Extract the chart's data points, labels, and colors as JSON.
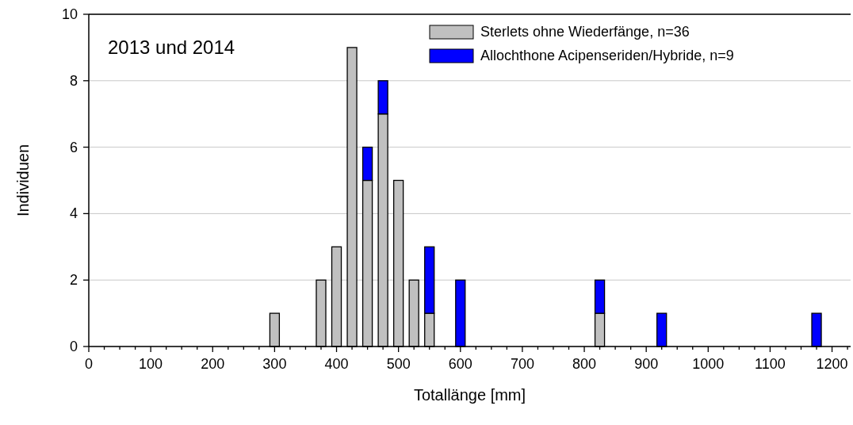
{
  "chart_data": {
    "type": "bar",
    "stacked": true,
    "xlabel": "Totallänge [mm]",
    "ylabel": "Individuen",
    "annotations": [
      "2013 und 2014"
    ],
    "x": [
      300,
      375,
      400,
      425,
      450,
      475,
      500,
      525,
      550,
      600,
      825,
      925,
      1175
    ],
    "series": [
      {
        "name": "Sterlets ohne Wiederfänge, n=36",
        "color": "#c0c0c0",
        "values": [
          1,
          2,
          3,
          9,
          5,
          7,
          5,
          2,
          1,
          0,
          1,
          0,
          0
        ]
      },
      {
        "name": "Allochthone Acipenseriden/Hybride, n=9",
        "color": "#0000ff",
        "values": [
          0,
          0,
          0,
          0,
          1,
          1,
          0,
          0,
          2,
          2,
          1,
          1,
          1
        ]
      }
    ],
    "xlim": [
      0,
      1230
    ],
    "xticks": [
      0,
      {
        "value": 25,
        "label": null
      },
      {
        "value": 50,
        "label": null
      },
      {
        "value": 75,
        "label": null
      },
      100,
      {
        "value": 125,
        "label": null
      },
      {
        "value": 150,
        "label": null
      },
      {
        "value": 175,
        "label": null
      },
      200,
      {
        "value": 225,
        "label": null
      },
      {
        "value": 250,
        "label": null
      },
      {
        "value": 275,
        "label": null
      },
      300,
      {
        "value": 325,
        "label": null
      },
      {
        "value": 350,
        "label": null
      },
      {
        "value": 375,
        "label": null
      },
      400,
      {
        "value": 425,
        "label": null
      },
      {
        "value": 450,
        "label": null
      },
      {
        "value": 475,
        "label": null
      },
      500,
      {
        "value": 525,
        "label": null
      },
      {
        "value": 550,
        "label": null
      },
      {
        "value": 575,
        "label": null
      },
      600,
      {
        "value": 625,
        "label": null
      },
      {
        "value": 650,
        "label": null
      },
      {
        "value": 675,
        "label": null
      },
      700,
      {
        "value": 725,
        "label": null
      },
      {
        "value": 750,
        "label": null
      },
      {
        "value": 775,
        "label": null
      },
      800,
      {
        "value": 825,
        "label": null
      },
      {
        "value": 850,
        "label": null
      },
      {
        "value": 875,
        "label": null
      },
      900,
      {
        "value": 925,
        "label": null
      },
      {
        "value": 950,
        "label": null
      },
      {
        "value": 975,
        "label": null
      },
      1000,
      {
        "value": 1025,
        "label": null
      },
      {
        "value": 1050,
        "label": null
      },
      {
        "value": 1075,
        "label": null
      },
      1100,
      {
        "value": 1125,
        "label": null
      },
      {
        "value": 1150,
        "label": null
      },
      {
        "value": 1175,
        "label": null
      },
      1200,
      {
        "value": 1225,
        "label": null
      }
    ],
    "ylim": [
      0,
      10
    ],
    "yticks": [
      0,
      2,
      4,
      6,
      8,
      10
    ],
    "grid": "y",
    "legend": "top right"
  }
}
